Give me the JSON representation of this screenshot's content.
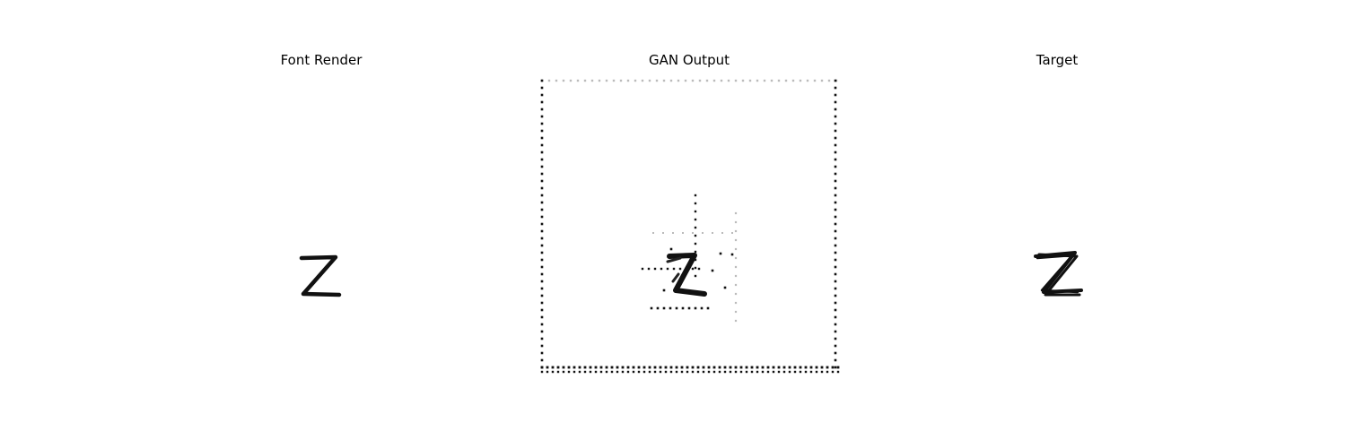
{
  "panels": [
    {
      "title": "Font Render",
      "glyph_description": "letter-z-font"
    },
    {
      "title": "GAN Output",
      "glyph_description": "letter-z-generated"
    },
    {
      "title": "Target",
      "glyph_description": "letter-z-handwritten"
    }
  ],
  "colors": {
    "ink": "#111111",
    "background": "#ffffff",
    "noise": "#bbbbbb"
  }
}
